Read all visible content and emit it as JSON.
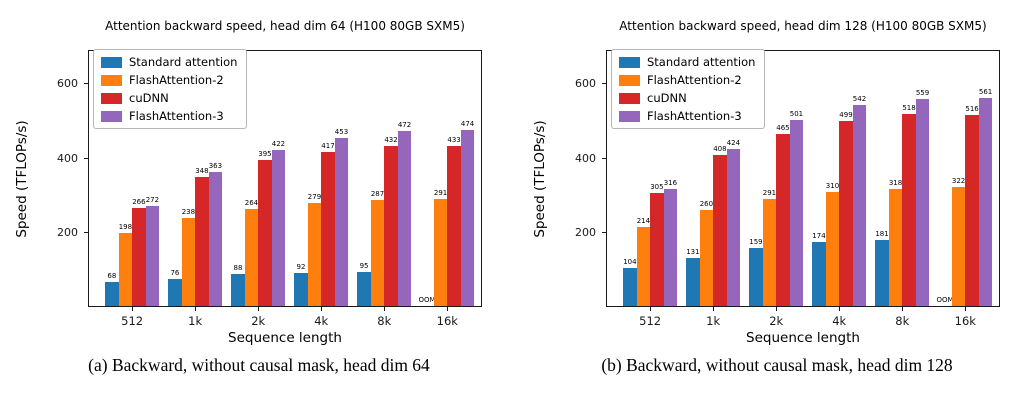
{
  "page": {
    "background": "#ffffff"
  },
  "chart_data": [
    {
      "type": "bar",
      "title": "Attention backward speed, head dim 64 (H100 80GB SXM5)",
      "xlabel": "Sequence length",
      "ylabel": "Speed (TFLOPs/s)",
      "caption": "(a) Backward, without causal mask, head dim 64",
      "categories": [
        "512",
        "1k",
        "2k",
        "4k",
        "8k",
        "16k"
      ],
      "yticks": [
        200,
        400,
        600
      ],
      "ylim": [
        0,
        690
      ],
      "grid": false,
      "legend_position": "upper left",
      "oom_text": "OOM",
      "series": [
        {
          "name": "Standard attention",
          "color": "#1f77b4",
          "values": [
            68,
            76,
            88,
            92,
            95,
            null
          ],
          "bar_labels": [
            "68",
            "76",
            "88",
            "92",
            "95",
            "OOM"
          ]
        },
        {
          "name": "FlashAttention-2",
          "color": "#ff7f0e",
          "values": [
            198,
            238,
            264,
            279,
            287,
            291
          ],
          "bar_labels": [
            "198",
            "238",
            "264",
            "279",
            "287",
            "291"
          ]
        },
        {
          "name": "cuDNN",
          "color": "#d62728",
          "values": [
            266,
            348,
            395,
            417,
            432,
            433
          ],
          "bar_labels": [
            "266",
            "348",
            "395",
            "417",
            "432",
            "433"
          ]
        },
        {
          "name": "FlashAttention-3",
          "color": "#9467bd",
          "values": [
            272,
            363,
            422,
            453,
            472,
            474
          ],
          "bar_labels": [
            "272",
            "363",
            "422",
            "453",
            "472",
            "474"
          ]
        }
      ]
    },
    {
      "type": "bar",
      "title": "Attention backward speed, head dim 128 (H100 80GB SXM5)",
      "xlabel": "Sequence length",
      "ylabel": "Speed (TFLOPs/s)",
      "caption": "(b) Backward, without causal mask, head dim 128",
      "categories": [
        "512",
        "1k",
        "2k",
        "4k",
        "8k",
        "16k"
      ],
      "yticks": [
        200,
        400,
        600
      ],
      "ylim": [
        0,
        690
      ],
      "grid": false,
      "legend_position": "upper left",
      "oom_text": "OOM",
      "series": [
        {
          "name": "Standard attention",
          "color": "#1f77b4",
          "values": [
            104,
            131,
            159,
            174,
            181,
            null
          ],
          "bar_labels": [
            "104",
            "131",
            "159",
            "174",
            "181",
            "OOM"
          ]
        },
        {
          "name": "FlashAttention-2",
          "color": "#ff7f0e",
          "values": [
            214,
            260,
            291,
            310,
            318,
            322
          ],
          "bar_labels": [
            "214",
            "260",
            "291",
            "310",
            "318",
            "322"
          ]
        },
        {
          "name": "cuDNN",
          "color": "#d62728",
          "values": [
            305,
            408,
            465,
            499,
            518,
            516
          ],
          "bar_labels": [
            "305",
            "408",
            "465",
            "499",
            "518",
            "516"
          ]
        },
        {
          "name": "FlashAttention-3",
          "color": "#9467bd",
          "values": [
            316,
            424,
            501,
            542,
            559,
            561
          ],
          "bar_labels": [
            "316",
            "424",
            "501",
            "542",
            "559",
            "561"
          ]
        }
      ]
    }
  ]
}
